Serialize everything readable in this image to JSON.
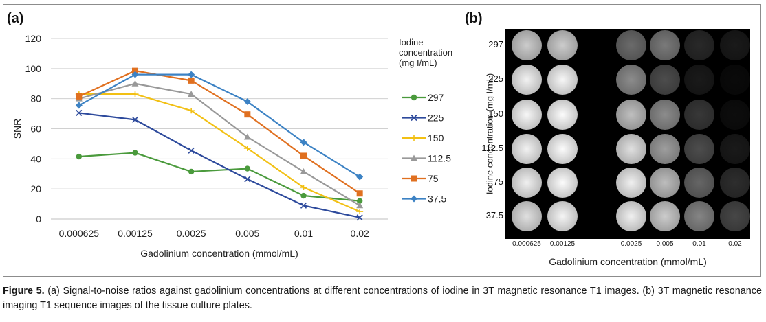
{
  "panel_a": {
    "label": "(a)",
    "chart_data": {
      "type": "line",
      "categories": [
        "0.000625",
        "0.00125",
        "0.0025",
        "0.005",
        "0.01",
        "0.02"
      ],
      "xlabel": "Gadolinium concentration (mmol/mL)",
      "ylabel": "SNR",
      "ylim": [
        0,
        120
      ],
      "yticks": [
        0,
        20,
        40,
        60,
        80,
        100,
        120
      ],
      "grid": "horizontal",
      "legend_title": "Iodine concentration (mg I/mL)",
      "legend_placement": "right",
      "series": [
        {
          "name": "297",
          "color": "#4a9a3c",
          "marker": "circle",
          "values": [
            41.5,
            44,
            31.5,
            33.5,
            15.5,
            12
          ]
        },
        {
          "name": "225",
          "color": "#2d4a9c",
          "marker": "x",
          "values": [
            70.5,
            66,
            45.5,
            26.5,
            9,
            1
          ]
        },
        {
          "name": "150",
          "color": "#f2c014",
          "marker": "dash",
          "values": [
            83,
            83,
            72,
            47,
            21,
            5
          ]
        },
        {
          "name": "112.5",
          "color": "#999999",
          "marker": "triangle",
          "values": [
            80,
            90,
            83,
            54.5,
            31.5,
            9
          ]
        },
        {
          "name": "75",
          "color": "#e07020",
          "marker": "square",
          "values": [
            81.5,
            98.5,
            92,
            69.5,
            42,
            17
          ]
        },
        {
          "name": "37.5",
          "color": "#3c82c4",
          "marker": "diamond",
          "values": [
            75.5,
            96,
            96,
            78,
            51,
            28
          ]
        }
      ]
    }
  },
  "panel_b": {
    "label": "(b)",
    "ylabel": "Iodine concentration (mg I/mL)",
    "xlabel": "Gadolinium concentration (mmol/mL)",
    "row_labels": [
      "297",
      "225",
      "150",
      "112.5",
      "75",
      "37.5"
    ],
    "col_labels": [
      "0.000625",
      "0.00125",
      "0.0025",
      "0.005",
      "0.01",
      "0.02"
    ],
    "intensities": [
      [
        0.8,
        0.8,
        0.42,
        0.48,
        0.16,
        0.1
      ],
      [
        0.95,
        0.97,
        0.55,
        0.3,
        0.1,
        0.04
      ],
      [
        0.97,
        0.99,
        0.75,
        0.55,
        0.22,
        0.05
      ],
      [
        0.95,
        0.99,
        0.88,
        0.62,
        0.3,
        0.1
      ],
      [
        0.94,
        0.99,
        0.94,
        0.74,
        0.4,
        0.18
      ],
      [
        0.88,
        0.96,
        0.94,
        0.8,
        0.52,
        0.28
      ]
    ]
  },
  "caption": {
    "label": "Figure 5.",
    "text": " (a) Signal-to-noise ratios against gadolinium concentrations at different concentrations of iodine in 3T magnetic resonance T1 images. (b) 3T magnetic resonance imaging T1 sequence images of the tissue culture plates."
  }
}
